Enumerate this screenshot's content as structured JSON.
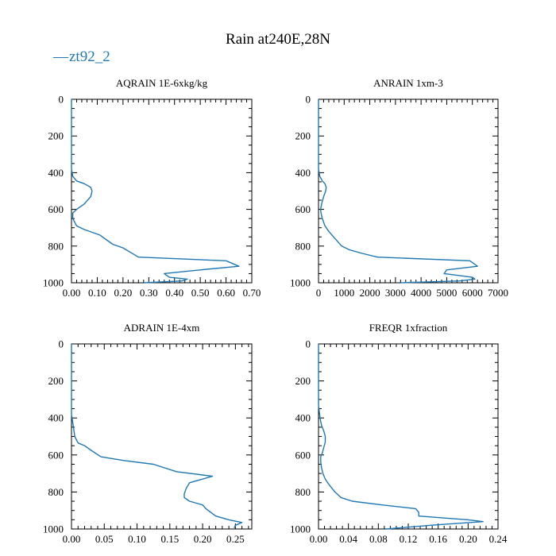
{
  "chart_data": {
    "title": "Rain at240E,28N",
    "legend": [
      {
        "name": "zt92_2",
        "color": "#1f77b4",
        "marker": "—"
      }
    ],
    "panels": [
      {
        "id": "aqrain",
        "type": "line",
        "title": "AQRAIN  1E-6xkg/kg",
        "xlim": [
          0,
          0.7
        ],
        "ylim": [
          1000,
          0
        ],
        "xticks": [
          0,
          0.1,
          0.2,
          0.3,
          0.4,
          0.5,
          0.6,
          0.7
        ],
        "xtick_labels": [
          "0.00",
          "0.10",
          "0.20",
          "0.30",
          "0.40",
          "0.50",
          "0.60",
          "0.70"
        ],
        "yticks": [
          0,
          200,
          400,
          600,
          800,
          1000
        ],
        "ytick_labels": [
          "0",
          "200",
          "400",
          "600",
          "800",
          "1000"
        ],
        "series": [
          {
            "name": "zt92_2",
            "x": [
              0.0,
              0.0,
              0.005,
              0.02,
              0.05,
              0.075,
              0.08,
              0.075,
              0.05,
              0.02,
              0.005,
              0.005,
              0.02,
              0.05,
              0.11,
              0.16,
              0.2,
              0.26,
              0.6,
              0.65,
              0.5,
              0.36,
              0.38,
              0.45,
              0.43,
              0.28
            ],
            "y": [
              0,
              380,
              420,
              445,
              460,
              480,
              500,
              530,
              570,
              600,
              620,
              650,
              690,
              710,
              740,
              790,
              810,
              860,
              880,
              910,
              930,
              950,
              970,
              980,
              990,
              1000
            ]
          }
        ]
      },
      {
        "id": "anrain",
        "type": "line",
        "title": "ANRAIN  1xm-3",
        "xlim": [
          0,
          7000
        ],
        "ylim": [
          1000,
          0
        ],
        "xticks": [
          0,
          1000,
          2000,
          3000,
          4000,
          5000,
          6000,
          7000
        ],
        "xtick_labels": [
          "0",
          "1000",
          "2000",
          "3000",
          "4000",
          "5000",
          "6000",
          "7000"
        ],
        "yticks": [
          0,
          200,
          400,
          600,
          800,
          1000
        ],
        "ytick_labels": [
          "0",
          "200",
          "400",
          "600",
          "800",
          "1000"
        ],
        "series": [
          {
            "name": "zt92_2",
            "x": [
              0,
              0,
              50,
              150,
              250,
              300,
              280,
              200,
              120,
              80,
              100,
              150,
              250,
              400,
              650,
              900,
              1200,
              1700,
              2300,
              5900,
              6200,
              5000,
              4900,
              6000,
              6100,
              5500,
              3200
            ],
            "y": [
              0,
              380,
              420,
              445,
              460,
              480,
              500,
              530,
              570,
              600,
              620,
              650,
              690,
              720,
              760,
              800,
              820,
              840,
              860,
              880,
              910,
              930,
              950,
              970,
              980,
              990,
              1000
            ]
          }
        ]
      },
      {
        "id": "adrain",
        "type": "line",
        "title": "ADRAIN  1E-4xm",
        "xlim": [
          0,
          0.275
        ],
        "ylim": [
          1000,
          0
        ],
        "xticks": [
          0,
          0.05,
          0.1,
          0.15,
          0.2,
          0.25
        ],
        "xtick_labels": [
          "0.00",
          "0.05",
          "0.10",
          "0.15",
          "0.20",
          "0.25"
        ],
        "yticks": [
          0,
          200,
          400,
          600,
          800,
          1000
        ],
        "ytick_labels": [
          "0",
          "200",
          "400",
          "600",
          "800",
          "1000"
        ],
        "series": [
          {
            "name": "zt92_2",
            "x": [
              0.0,
              0.0,
              0.003,
              0.005,
              0.01,
              0.02,
              0.03,
              0.045,
              0.08,
              0.125,
              0.16,
              0.215,
              0.18,
              0.175,
              0.172,
              0.172,
              0.18,
              0.2,
              0.205,
              0.22,
              0.24,
              0.26,
              0.25,
              0.248
            ],
            "y": [
              0,
              380,
              450,
              500,
              535,
              550,
              575,
              610,
              630,
              650,
              690,
              715,
              750,
              780,
              810,
              830,
              850,
              870,
              890,
              930,
              950,
              965,
              980,
              995
            ]
          }
        ]
      },
      {
        "id": "freqr",
        "type": "line",
        "title": "FREQR  1xfraction",
        "xlim": [
          0,
          0.24
        ],
        "ylim": [
          1000,
          0
        ],
        "xticks": [
          0,
          0.04,
          0.08,
          0.12,
          0.16,
          0.2,
          0.24
        ],
        "xtick_labels": [
          "0.00",
          "0.04",
          "0.08",
          "0.12",
          "0.16",
          "0.20",
          "0.24"
        ],
        "yticks": [
          0,
          200,
          400,
          600,
          800,
          1000
        ],
        "ytick_labels": [
          "0",
          "200",
          "400",
          "600",
          "800",
          "1000"
        ],
        "series": [
          {
            "name": "zt92_2",
            "x": [
              0,
              0,
              0.002,
              0.004,
              0.007,
              0.009,
              0.009,
              0.007,
              0.005,
              0.003,
              0.003,
              0.004,
              0.006,
              0.009,
              0.014,
              0.018,
              0.022,
              0.03,
              0.045,
              0.085,
              0.13,
              0.134,
              0.134,
              0.2,
              0.22,
              0.15,
              0.09
            ],
            "y": [
              0,
              330,
              400,
              440,
              470,
              500,
              530,
              560,
              590,
              610,
              640,
              670,
              700,
              730,
              760,
              780,
              800,
              830,
              850,
              870,
              890,
              910,
              930,
              950,
              960,
              980,
              1000
            ]
          }
        ]
      }
    ]
  }
}
